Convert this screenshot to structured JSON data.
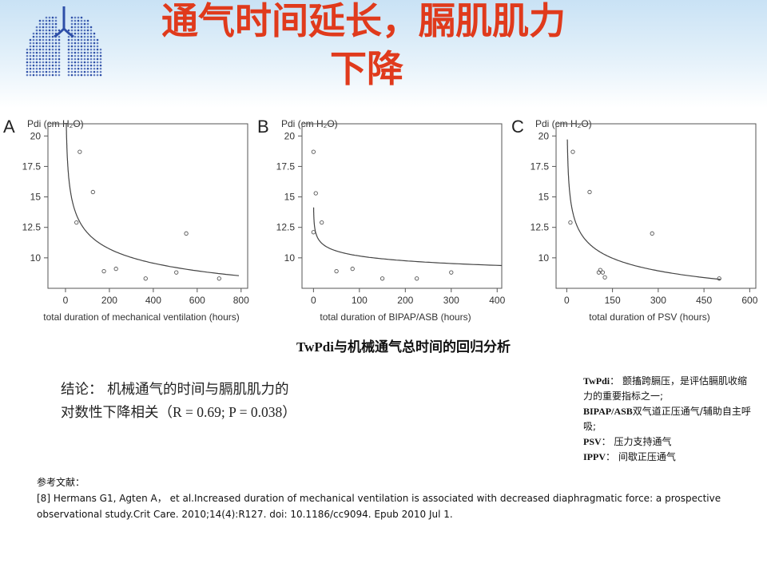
{
  "header": {
    "title_line1": "通气时间延长，膈肌肌力",
    "title_line2": "下降",
    "logo_icon": "lungs-icon",
    "band_color": "#c9e2f5",
    "title_color": "#e03a1c"
  },
  "chart_data": [
    {
      "panel": "A",
      "type": "scatter",
      "ylabel": "Pdi (cm H₂O)",
      "xlabel": "total duration of mechanical ventilation (hours)",
      "xlim": [
        -80,
        830
      ],
      "ylim": [
        7.5,
        21
      ],
      "xticks": [
        0,
        200,
        400,
        600,
        800
      ],
      "yticks": [
        20,
        17.5,
        15,
        12.5,
        10
      ],
      "points": [
        {
          "x": 65,
          "y": 18.7
        },
        {
          "x": 125,
          "y": 15.4
        },
        {
          "x": 50,
          "y": 12.9
        },
        {
          "x": 550,
          "y": 12.0
        },
        {
          "x": 175,
          "y": 8.9
        },
        {
          "x": 230,
          "y": 9.1
        },
        {
          "x": 365,
          "y": 8.3
        },
        {
          "x": 505,
          "y": 8.8
        },
        {
          "x": 700,
          "y": 8.3
        }
      ],
      "fit": {
        "model": "power",
        "a": 26.0,
        "b": -0.167,
        "x_from": 3,
        "x_to": 790
      },
      "grid": false,
      "legend": "none"
    },
    {
      "panel": "B",
      "type": "scatter",
      "ylabel": "Pdi (cm H₂O)",
      "xlabel": "total duration of BIPAP/ASB (hours)",
      "xlim": [
        -25,
        410
      ],
      "ylim": [
        7.5,
        21
      ],
      "xticks": [
        0,
        100,
        200,
        300,
        400
      ],
      "yticks": [
        20,
        17.5,
        15,
        12.5,
        10
      ],
      "points": [
        {
          "x": 0,
          "y": 18.7
        },
        {
          "x": 5,
          "y": 15.3
        },
        {
          "x": 18,
          "y": 12.9
        },
        {
          "x": 0,
          "y": 12.1
        },
        {
          "x": 50,
          "y": 8.9
        },
        {
          "x": 85,
          "y": 9.1
        },
        {
          "x": 150,
          "y": 8.3
        },
        {
          "x": 225,
          "y": 8.3
        },
        {
          "x": 300,
          "y": 8.8
        }
      ],
      "fit": {
        "model": "power",
        "a": 13.2,
        "b": -0.057,
        "x_from": 0.3,
        "x_to": 410
      },
      "grid": false,
      "legend": "none"
    },
    {
      "panel": "C",
      "type": "scatter",
      "ylabel": "Pdi (cm H₂O)",
      "xlabel": "total duration of PSV (hours)",
      "xlim": [
        -35,
        620
      ],
      "ylim": [
        7.5,
        21
      ],
      "xticks": [
        0,
        150,
        300,
        450,
        600
      ],
      "yticks": [
        20,
        17.5,
        15,
        12.5,
        10
      ],
      "points": [
        {
          "x": 20,
          "y": 18.7
        },
        {
          "x": 75,
          "y": 15.4
        },
        {
          "x": 12,
          "y": 12.9
        },
        {
          "x": 280,
          "y": 12.0
        },
        {
          "x": 110,
          "y": 9.0
        },
        {
          "x": 105,
          "y": 8.8
        },
        {
          "x": 118,
          "y": 8.8
        },
        {
          "x": 125,
          "y": 8.4
        },
        {
          "x": 500,
          "y": 8.3
        }
      ],
      "fit": {
        "model": "power",
        "a": 22.0,
        "b": -0.158,
        "x_from": 2,
        "x_to": 505
      },
      "grid": false,
      "legend": "none"
    }
  ],
  "caption": "TwPdi与机械通气总时间的回归分析",
  "conclusion": {
    "line1": "结论：  机械通气的时间与膈肌肌力的",
    "line2_prefix": "对数性下降相关（",
    "line2_stats": "R = 0.69; P = 0.038",
    "line2_suffix": "）"
  },
  "abbreviations": [
    {
      "key": "TwPdi",
      "text": "：  颤搐跨膈压，是评估膈肌收缩力的重要指标之一;"
    },
    {
      "key": "BIPAP/ASB",
      "text": "双气道正压通气/辅助自主呼吸;"
    },
    {
      "key": "PSV",
      "text": "：  压力支持通气"
    },
    {
      "key": "IPPV",
      "text": "：  间歇正压通气"
    }
  ],
  "references": {
    "heading": "参考文献：",
    "entry": "[8] Hermans G1, Agten A，  et al.Increased duration of mechanical ventilation is associated with decreased diaphragmatic force: a prospective observational study.Crit Care. 2010;14(4):R127. doi: 10.1186/cc9094. Epub 2010 Jul 1."
  }
}
